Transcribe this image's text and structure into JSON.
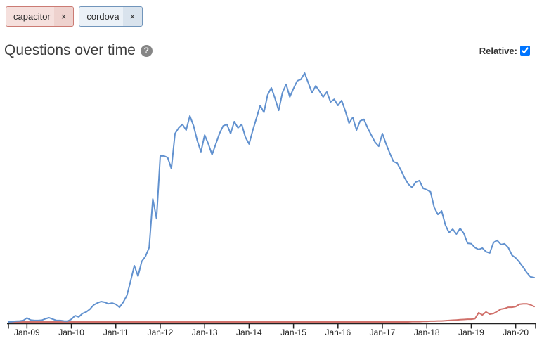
{
  "tags": [
    {
      "label": "capacitor",
      "remove_label": "×",
      "line_color": "#d0706a"
    },
    {
      "label": "cordova",
      "remove_label": "×",
      "line_color": "#6191cf"
    }
  ],
  "header": {
    "title": "Questions over time",
    "help_icon": "?",
    "relative_label": "Relative:",
    "relative_checked": true
  },
  "chart_data": {
    "type": "line",
    "title": "Questions over time",
    "xlabel": "",
    "ylabel": "",
    "x_interval": "month",
    "x_start": "2008-08",
    "x_end": "2020-06",
    "x_tick_labels": [
      "Jan-09",
      "Jan-10",
      "Jan-11",
      "Jan-12",
      "Jan-13",
      "Jan-14",
      "Jan-15",
      "Jan-16",
      "Jan-17",
      "Jan-18",
      "Jan-19",
      "Jan-20"
    ],
    "y_axis_visible": false,
    "grid": false,
    "legend_position": "none",
    "ylim": [
      0,
      103
    ],
    "value_note": "relative share of questions per month, normalized so peak (cordova, Apr-2015) = 100",
    "series": [
      {
        "name": "cordova",
        "color": "#6191cf",
        "values": [
          0,
          0.1,
          0.3,
          0.4,
          0.6,
          1.6,
          0.8,
          0.6,
          0.6,
          0.7,
          1.3,
          1.7,
          1.1,
          0.6,
          0.6,
          0.4,
          0.3,
          1.1,
          2.5,
          2.0,
          3.4,
          4.0,
          5.1,
          6.8,
          7.6,
          8.2,
          7.9,
          7.3,
          7.6,
          7.1,
          5.9,
          7.9,
          10.7,
          16.4,
          22.6,
          18.4,
          24.3,
          26.3,
          29.9,
          49.4,
          41.5,
          66.7,
          66.7,
          66.1,
          61.6,
          75.7,
          78.0,
          79.4,
          77.1,
          82.8,
          78.8,
          72.9,
          68.4,
          75.1,
          71.5,
          67.2,
          71.5,
          75.7,
          78.8,
          79.4,
          75.7,
          80.5,
          78.0,
          79.4,
          74.3,
          71.5,
          77.1,
          81.9,
          87.0,
          84.2,
          91.2,
          94.1,
          89.8,
          85.0,
          92.1,
          95.5,
          90.4,
          93.8,
          96.9,
          97.5,
          100.0,
          96.0,
          92.1,
          94.9,
          92.7,
          90.4,
          92.4,
          88.4,
          89.5,
          87.0,
          89.0,
          84.7,
          79.9,
          82.2,
          77.1,
          80.8,
          81.4,
          78.0,
          75.1,
          72.3,
          70.6,
          75.7,
          71.5,
          67.8,
          64.4,
          63.8,
          61.0,
          57.9,
          55.4,
          54.0,
          56.2,
          56.8,
          53.7,
          53.1,
          52.3,
          46.0,
          43.2,
          44.6,
          39.0,
          35.9,
          37.3,
          35.3,
          37.6,
          35.6,
          31.6,
          31.4,
          29.9,
          29.1,
          29.7,
          28.2,
          27.7,
          31.9,
          32.8,
          31.1,
          31.4,
          29.9,
          26.8,
          25.7,
          24.0,
          22.0,
          19.8,
          18.1,
          17.8
        ]
      },
      {
        "name": "capacitor",
        "color": "#d0706a",
        "values": [
          0,
          0,
          0,
          0,
          0,
          0,
          0,
          0,
          0,
          0,
          0,
          0,
          0,
          0,
          0,
          0,
          0,
          0,
          0,
          0,
          0,
          0,
          0,
          0,
          0,
          0,
          0,
          0,
          0,
          0,
          0,
          0,
          0,
          0,
          0,
          0,
          0,
          0,
          0,
          0,
          0,
          0,
          0,
          0,
          0,
          0,
          0,
          0,
          0,
          0,
          0,
          0,
          0,
          0,
          0,
          0,
          0,
          0,
          0,
          0,
          0,
          0,
          0,
          0,
          0,
          0,
          0,
          0,
          0,
          0,
          0,
          0,
          0,
          0,
          0,
          0,
          0,
          0,
          0,
          0,
          0,
          0,
          0,
          0,
          0,
          0,
          0,
          0,
          0,
          0,
          0,
          0,
          0,
          0,
          0,
          0,
          0,
          0,
          0,
          0,
          0,
          0,
          0,
          0,
          0,
          0,
          0,
          0,
          0,
          0.1,
          0.1,
          0.1,
          0.2,
          0.2,
          0.3,
          0.3,
          0.4,
          0.4,
          0.5,
          0.6,
          0.7,
          0.8,
          0.9,
          1.0,
          1.1,
          1.1,
          1.3,
          3.7,
          2.8,
          4.0,
          3.1,
          3.4,
          4.2,
          5.1,
          5.4,
          5.9,
          5.9,
          6.2,
          7.1,
          7.3,
          7.3,
          6.9,
          6.2
        ]
      }
    ]
  }
}
